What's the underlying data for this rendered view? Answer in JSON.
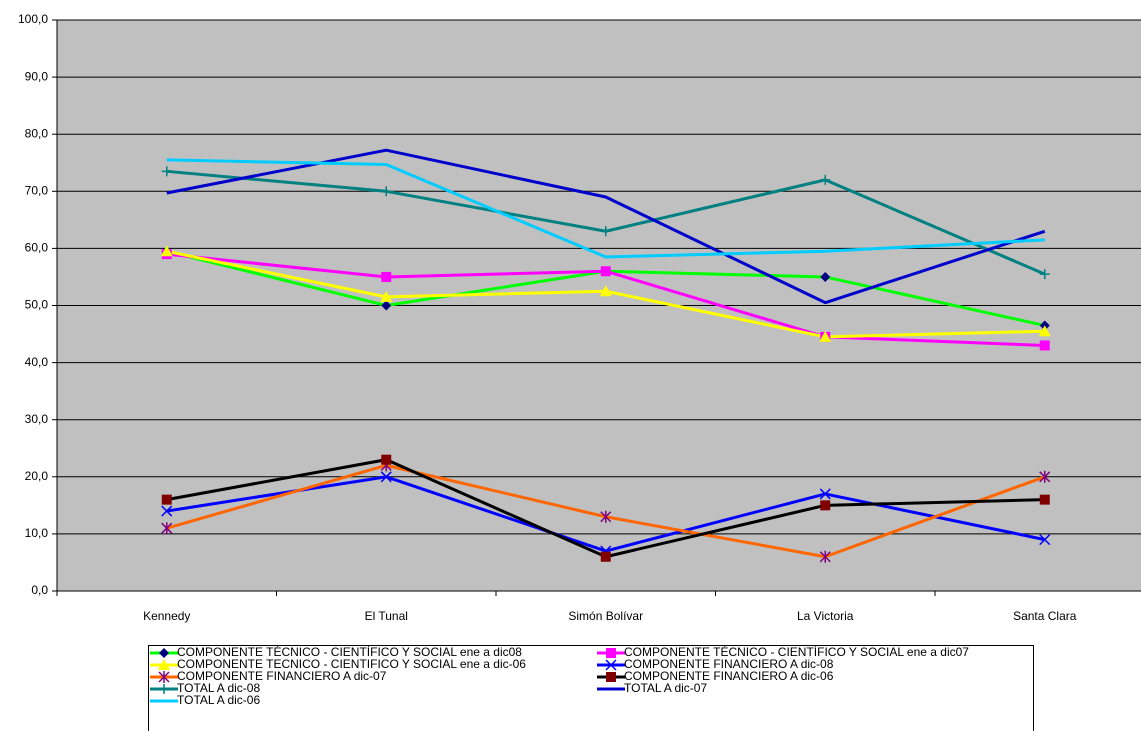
{
  "chart_data": {
    "type": "line",
    "categories": [
      "Kennedy",
      "El Tunal",
      "Simón Bolívar",
      "La Victoria",
      "Santa Clara"
    ],
    "ylim": [
      0,
      100
    ],
    "yticks": [
      {
        "value": 0,
        "label": "0,0"
      },
      {
        "value": 10,
        "label": "10,0"
      },
      {
        "value": 20,
        "label": "20,0"
      },
      {
        "value": 30,
        "label": "30,0"
      },
      {
        "value": 40,
        "label": "40,0"
      },
      {
        "value": 50,
        "label": "50,0"
      },
      {
        "value": 60,
        "label": "60,0"
      },
      {
        "value": 70,
        "label": "70,0"
      },
      {
        "value": 80,
        "label": "80,0"
      },
      {
        "value": 90,
        "label": "90,0"
      },
      {
        "value": 100,
        "label": "100,0"
      }
    ],
    "grid": true,
    "series": [
      {
        "name": "COMPONENTE TÉCNICO - CIENTÍFICO Y SOCIAL ene a dic08",
        "color": "#00ff00",
        "marker": "diamond",
        "marker_color": "#000080",
        "values": [
          59.5,
          50,
          56,
          55,
          46.5
        ]
      },
      {
        "name": "COMPONENTE TÉCNICO - CIENTÍFICO Y SOCIAL ene a dic07",
        "color": "#ff00ff",
        "marker": "square",
        "marker_color": "#ff00ff",
        "values": [
          59,
          55,
          56,
          44.5,
          43
        ]
      },
      {
        "name": "COMPONENTE TECNICO - CIENTIFICO Y SOCIAL ene a dic-06",
        "color": "#ffff00",
        "marker": "triangle",
        "marker_color": "#ffff00",
        "values": [
          59.5,
          51.5,
          52.5,
          44.5,
          45.5
        ]
      },
      {
        "name": "COMPONENTE FINANCIERO A dic-08",
        "color": "#0000ff",
        "marker": "x",
        "marker_color": "#0000ff",
        "values": [
          14,
          20,
          7,
          17,
          9
        ]
      },
      {
        "name": "COMPONENTE FINANCIERO A dic-07",
        "color": "#ff6600",
        "marker": "star",
        "marker_color": "#800080",
        "values": [
          11,
          22,
          13,
          6,
          20
        ]
      },
      {
        "name": "COMPONENTE FINANCIERO A dic-06",
        "color": "#000000",
        "marker": "square",
        "marker_color": "#800000",
        "values": [
          16,
          23,
          6,
          15,
          16
        ]
      },
      {
        "name": "TOTAL A dic-08",
        "color": "#008080",
        "marker": "plus",
        "marker_color": "#008080",
        "values": [
          73.5,
          70,
          63,
          72,
          55.5
        ]
      },
      {
        "name": "TOTAL A dic-07",
        "color": "#0000cc",
        "marker": "none",
        "marker_color": "#0000cc",
        "values": [
          69.7,
          77.2,
          69,
          50.5,
          63
        ]
      },
      {
        "name": "TOTAL A dic-06",
        "color": "#00ccff",
        "marker": "none",
        "marker_color": "#00ccff",
        "values": [
          75.5,
          74.7,
          58.5,
          59.5,
          61.5
        ]
      }
    ]
  }
}
